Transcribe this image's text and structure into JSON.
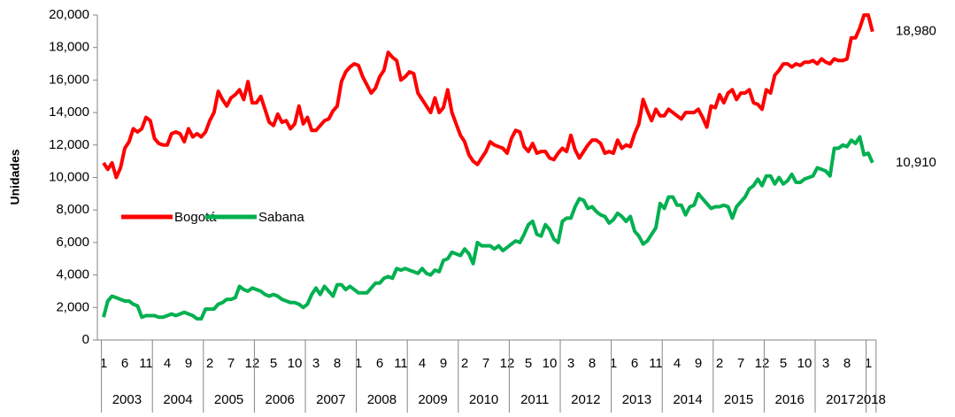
{
  "chart_data": {
    "type": "line",
    "y_label": "Unidades",
    "categories": [
      "1",
      null,
      null,
      null,
      null,
      "6",
      null,
      null,
      null,
      null,
      "11",
      null,
      null,
      null,
      null,
      "4",
      null,
      null,
      null,
      null,
      "9",
      null,
      null,
      null,
      null,
      "2",
      null,
      null,
      null,
      null,
      "7",
      null,
      null,
      null,
      null,
      "12",
      null,
      null,
      null,
      null,
      "5",
      null,
      null,
      null,
      null,
      "10",
      null,
      null,
      null,
      null,
      "3",
      null,
      null,
      null,
      null,
      "8",
      null,
      null,
      null,
      null,
      "1",
      null,
      null,
      null,
      null,
      "6",
      null,
      null,
      null,
      null,
      "11",
      null,
      null,
      null,
      null,
      "4",
      null,
      null,
      null,
      null,
      "9",
      null,
      null,
      null,
      null,
      "2",
      null,
      null,
      null,
      null,
      "7",
      null,
      null,
      null,
      null,
      "12",
      null,
      null,
      null,
      null,
      "5",
      null,
      null,
      null,
      null,
      "10",
      null,
      null,
      null,
      null,
      "3",
      null,
      null,
      null,
      null,
      "8",
      null,
      null,
      null,
      null,
      "1",
      null,
      null,
      null,
      null,
      "6",
      null,
      null,
      null,
      null,
      "11",
      null,
      null,
      null,
      null,
      "4",
      null,
      null,
      null,
      null,
      "9",
      null,
      null,
      null,
      null,
      "2",
      null,
      null,
      null,
      null,
      "7",
      null,
      null,
      null,
      null,
      "12",
      null,
      null,
      null,
      null,
      "5",
      null,
      null,
      null,
      null,
      "10",
      null,
      null,
      null,
      null,
      "3",
      null,
      null,
      null,
      null,
      "8",
      null,
      null,
      null,
      null,
      "1",
      null
    ],
    "years": [
      "2003",
      "2004",
      "2005",
      "2006",
      "2007",
      "2008",
      "2009",
      "2010",
      "2011",
      "2012",
      "2013",
      "2014",
      "2015",
      "2016",
      "2017",
      "2018"
    ],
    "ylim": [
      0,
      20000
    ],
    "yticks": [
      {
        "value": 0,
        "label": "0"
      },
      {
        "value": 2000,
        "label": "2,000"
      },
      {
        "value": 4000,
        "label": "4,000"
      },
      {
        "value": 6000,
        "label": "6,000"
      },
      {
        "value": 8000,
        "label": "8,000"
      },
      {
        "value": 10000,
        "label": "10,000"
      },
      {
        "value": 12000,
        "label": "12,000"
      },
      {
        "value": 14000,
        "label": "14,000"
      },
      {
        "value": 16000,
        "label": "16,000"
      },
      {
        "value": 18000,
        "label": "18,000"
      },
      {
        "value": 20000,
        "label": "20,000"
      }
    ],
    "grid": false,
    "series": [
      {
        "name": "Bogotá",
        "color": "#ff0000",
        "values": [
          10900,
          10500,
          10900,
          10000,
          10600,
          11800,
          12200,
          13000,
          12800,
          13000,
          13700,
          13500,
          12400,
          12100,
          12000,
          12000,
          12700,
          12800,
          12700,
          12200,
          13000,
          12500,
          12700,
          12500,
          12800,
          13500,
          14000,
          15300,
          14800,
          14400,
          14900,
          15100,
          15400,
          14800,
          15900,
          14600,
          14600,
          15000,
          14200,
          13400,
          13200,
          13900,
          13400,
          13500,
          13000,
          13300,
          14400,
          13300,
          13700,
          12900,
          12900,
          13200,
          13500,
          13600,
          14100,
          14400,
          15900,
          16500,
          16800,
          17000,
          16900,
          16200,
          15700,
          15200,
          15500,
          16200,
          16600,
          17700,
          17400,
          17200,
          16000,
          16200,
          16500,
          16400,
          15200,
          14800,
          14400,
          14000,
          14900,
          14000,
          14300,
          15400,
          14000,
          13300,
          12600,
          12200,
          11400,
          11000,
          10800,
          11200,
          11600,
          12200,
          12000,
          11900,
          11800,
          11500,
          12400,
          12900,
          12800,
          11900,
          11600,
          12100,
          11500,
          11600,
          11600,
          11200,
          11100,
          11500,
          11800,
          11600,
          12600,
          11700,
          11200,
          11600,
          12000,
          12300,
          12300,
          12100,
          11500,
          11600,
          11500,
          12300,
          11800,
          12000,
          11900,
          12700,
          13300,
          14800,
          14100,
          13500,
          14200,
          13800,
          13800,
          14200,
          14000,
          13800,
          13600,
          14000,
          14000,
          14000,
          14200,
          13700,
          13100,
          14400,
          14300,
          15100,
          14600,
          15200,
          15400,
          14800,
          15200,
          15200,
          15400,
          14600,
          14500,
          14200,
          15400,
          15200,
          16300,
          16600,
          17000,
          17000,
          16800,
          17000,
          16900,
          17100,
          17100,
          17200,
          17000,
          17300,
          17100,
          17000,
          17300,
          17200,
          17200,
          17300,
          18600,
          18600,
          19200,
          20000,
          20000,
          18980
        ],
        "value_labels": {
          "181": "18,980"
        }
      },
      {
        "name": "Sabana",
        "color": "#00b050",
        "values": [
          1400,
          2400,
          2700,
          2600,
          2500,
          2400,
          2400,
          2200,
          2100,
          1400,
          1500,
          1500,
          1500,
          1400,
          1400,
          1500,
          1600,
          1500,
          1600,
          1700,
          1600,
          1500,
          1300,
          1300,
          1900,
          1900,
          1900,
          2200,
          2300,
          2500,
          2500,
          2600,
          3300,
          3100,
          3000,
          3200,
          3100,
          3000,
          2800,
          2700,
          2800,
          2700,
          2500,
          2400,
          2300,
          2300,
          2200,
          2000,
          2200,
          2800,
          3200,
          2800,
          3300,
          3000,
          2700,
          3400,
          3400,
          3100,
          3300,
          3100,
          2900,
          2900,
          2900,
          3200,
          3500,
          3500,
          3800,
          3900,
          3800,
          4400,
          4300,
          4400,
          4300,
          4200,
          4100,
          4400,
          4100,
          4000,
          4300,
          4200,
          4900,
          5000,
          5400,
          5300,
          5200,
          5600,
          5300,
          4700,
          6000,
          5800,
          5800,
          5800,
          5600,
          5800,
          5500,
          5700,
          5900,
          6100,
          6000,
          6500,
          7100,
          7300,
          6500,
          6400,
          7100,
          6800,
          6200,
          6000,
          7300,
          7500,
          7500,
          8200,
          8700,
          8600,
          8100,
          8200,
          7900,
          7700,
          7600,
          7200,
          7400,
          7800,
          7600,
          7300,
          7600,
          6700,
          6400,
          5900,
          6100,
          6500,
          6900,
          8400,
          8100,
          8800,
          8800,
          8300,
          8300,
          7700,
          8200,
          8300,
          9000,
          8700,
          8400,
          8100,
          8200,
          8200,
          8300,
          8200,
          7500,
          8200,
          8500,
          8800,
          9300,
          9500,
          9900,
          9500,
          10100,
          10100,
          9600,
          10000,
          9600,
          9800,
          10200,
          9700,
          9700,
          9900,
          10000,
          10100,
          10600,
          10500,
          10400,
          10100,
          11800,
          11800,
          12000,
          11900,
          12300,
          12100,
          12500,
          11400,
          11500,
          10910
        ],
        "value_labels": {
          "181": "10,910"
        }
      }
    ]
  }
}
